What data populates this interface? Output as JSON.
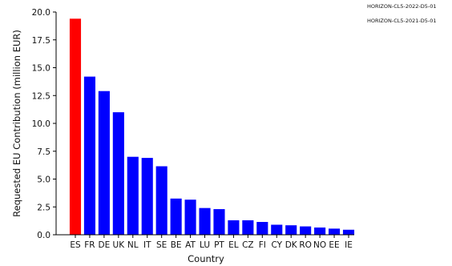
{
  "chart_data": {
    "type": "bar",
    "xlabel": "Country",
    "ylabel": "Requested EU Contribution (million EUR)",
    "ylim": [
      0,
      20
    ],
    "yticks": [
      "0.0",
      "2.5",
      "5.0",
      "7.5",
      "10.0",
      "12.5",
      "15.0",
      "17.5",
      "20.0"
    ],
    "categories": [
      "ES",
      "FR",
      "DE",
      "UK",
      "NL",
      "IT",
      "SE",
      "BE",
      "AT",
      "LU",
      "PT",
      "EL",
      "CZ",
      "FI",
      "CY",
      "DK",
      "RO",
      "NO",
      "EE",
      "IE"
    ],
    "values": [
      19.4,
      14.2,
      12.9,
      11.0,
      7.0,
      6.9,
      6.15,
      3.25,
      3.15,
      2.4,
      2.3,
      1.3,
      1.3,
      1.15,
      0.9,
      0.85,
      0.75,
      0.65,
      0.55,
      0.45
    ],
    "highlight_category": "ES",
    "colors": {
      "highlight": "#ff0000",
      "default": "#0000ff"
    },
    "legend": [
      "HORIZON-CL5-2022-D5-01",
      "HORIZON-CL5-2021-D5-01"
    ],
    "legend_position": "top-right",
    "grid": false
  }
}
